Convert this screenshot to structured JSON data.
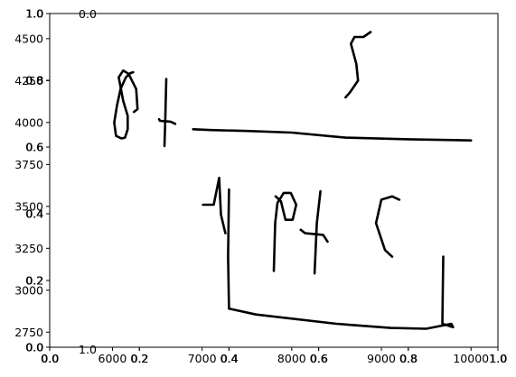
{
  "chart_data": {
    "type": "line",
    "description_free": true,
    "axes": [
      {
        "id": "overlay-axes-1",
        "xticks": [
          "0.0",
          "0.2",
          "0.4",
          "0.6",
          "0.8",
          "1.0"
        ],
        "yticks": [
          "0.0",
          "0.2",
          "0.4",
          "0.6",
          "0.8",
          "1.0"
        ],
        "xlim": [
          0,
          1
        ],
        "ylim": [
          0,
          1
        ]
      },
      {
        "id": "overlay-axes-2",
        "xticks": [
          "0.0",
          "0.2",
          "0.4",
          "0.6",
          "0.8",
          "1.0"
        ],
        "yticks": [
          "0.0",
          "0.2",
          "0.4",
          "0.6",
          "0.8",
          "1.0"
        ],
        "xlim": [
          0,
          1
        ],
        "ylim": [
          0,
          1
        ]
      },
      {
        "id": "main-axes",
        "xticks": [
          "6000",
          "7000",
          "8000",
          "9000",
          "10000"
        ],
        "yticks": [
          "2750",
          "3000",
          "3250",
          "3500",
          "3750",
          "4000",
          "4250",
          "4500"
        ],
        "xlim": [
          5300,
          10300
        ],
        "ylim": [
          2660,
          4650
        ]
      }
    ],
    "stray_labels": [
      "0.0",
      "1.0"
    ],
    "strokes": [
      {
        "name": "ink-stroke-d",
        "points": [
          [
            6240,
            4063
          ],
          [
            6280,
            4080
          ],
          [
            6265,
            4200
          ],
          [
            6180,
            4290
          ],
          [
            6120,
            4310
          ],
          [
            6070,
            4270
          ],
          [
            6120,
            4130
          ],
          [
            6170,
            4040
          ],
          [
            6170,
            3960
          ],
          [
            6140,
            3910
          ],
          [
            6100,
            3905
          ],
          [
            6040,
            3920
          ],
          [
            6020,
            4000
          ],
          [
            6050,
            4100
          ],
          [
            6090,
            4200
          ],
          [
            6150,
            4270
          ],
          [
            6200,
            4295
          ],
          [
            6230,
            4300
          ]
        ]
      },
      {
        "name": "ink-stroke-plus-horizontal",
        "points": [
          [
            6520,
            4020
          ],
          [
            6530,
            4010
          ],
          [
            6590,
            4008
          ],
          [
            6650,
            4005
          ],
          [
            6700,
            3992
          ]
        ]
      },
      {
        "name": "ink-stroke-plus-vertical",
        "points": [
          [
            6600,
            4260
          ],
          [
            6588,
            4000
          ],
          [
            6580,
            3860
          ]
        ]
      },
      {
        "name": "ink-stroke-five",
        "points": [
          [
            8600,
            4150
          ],
          [
            8650,
            4180
          ],
          [
            8740,
            4250
          ],
          [
            8720,
            4350
          ],
          [
            8660,
            4470
          ],
          [
            8700,
            4510
          ],
          [
            8800,
            4510
          ],
          [
            8880,
            4540
          ]
        ]
      },
      {
        "name": "ink-stroke-fraction-bar",
        "points": [
          [
            6900,
            3960
          ],
          [
            7100,
            3955
          ],
          [
            7500,
            3950
          ],
          [
            8000,
            3940
          ],
          [
            8600,
            3910
          ],
          [
            9300,
            3900
          ],
          [
            10000,
            3893
          ]
        ]
      },
      {
        "name": "ink-stroke-l",
        "points": [
          [
            7010,
            3510
          ],
          [
            7130,
            3510
          ],
          [
            7190,
            3670
          ],
          [
            7210,
            3450
          ],
          [
            7260,
            3340
          ]
        ]
      },
      {
        "name": "ink-stroke-p",
        "points": [
          [
            7800,
            3115
          ],
          [
            7815,
            3400
          ],
          [
            7840,
            3520
          ],
          [
            7910,
            3580
          ],
          [
            7990,
            3580
          ],
          [
            8050,
            3510
          ],
          [
            8010,
            3420
          ],
          [
            7930,
            3420
          ],
          [
            7880,
            3530
          ],
          [
            7820,
            3560
          ]
        ]
      },
      {
        "name": "ink-stroke-t-horizontal",
        "points": [
          [
            8100,
            3360
          ],
          [
            8150,
            3340
          ],
          [
            8350,
            3330
          ],
          [
            8400,
            3290
          ]
        ]
      },
      {
        "name": "ink-stroke-t-vertical",
        "points": [
          [
            8320,
            3590
          ],
          [
            8280,
            3400
          ],
          [
            8255,
            3100
          ]
        ]
      },
      {
        "name": "ink-stroke-c",
        "points": [
          [
            9200,
            3540
          ],
          [
            9120,
            3560
          ],
          [
            9000,
            3540
          ],
          [
            8940,
            3400
          ],
          [
            9040,
            3240
          ],
          [
            9120,
            3200
          ]
        ]
      },
      {
        "name": "ink-stroke-bracket",
        "points": [
          [
            7300,
            3600
          ],
          [
            7290,
            3200
          ],
          [
            7300,
            2890
          ],
          [
            7600,
            2855
          ],
          [
            8500,
            2800
          ],
          [
            9100,
            2775
          ],
          [
            9500,
            2770
          ],
          [
            9780,
            2800
          ],
          [
            9800,
            2780
          ],
          [
            9680,
            2800
          ],
          [
            9690,
            3200
          ]
        ]
      }
    ]
  }
}
